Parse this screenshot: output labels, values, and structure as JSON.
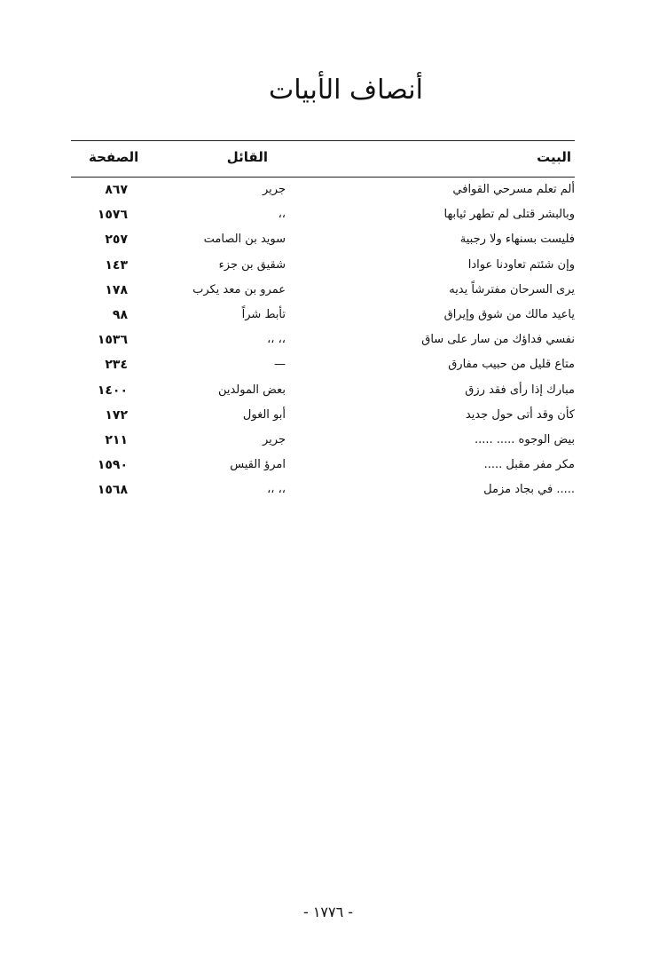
{
  "title": "أنصاف الأبيات",
  "table": {
    "headers": {
      "verse": "البيت",
      "speaker": "القائل",
      "page": "الصفحة"
    },
    "rows": [
      {
        "verse": "ألم تعلم مسرحي القوافي",
        "speaker": "جرير",
        "page": "٨٦٧"
      },
      {
        "verse": "وبالبشر قتلى لم تطهر ثيابها",
        "speaker": "،،",
        "page": "١٥٧٦"
      },
      {
        "verse": "فليست بسنهاء ولا رجبية",
        "speaker": "سويد بن الصامت",
        "page": "٢٥٧"
      },
      {
        "verse": "وإن شئتم تعاودنا عوادا",
        "speaker": "شقيق بن جزء",
        "page": "١٤٣"
      },
      {
        "verse": "يرى السرحان مفترشاً يديه",
        "speaker": "عمرو بن معد يكرب",
        "page": "١٧٨"
      },
      {
        "verse": "ياعيد مالك من شوق وإيراق",
        "speaker": "تأبط شراً",
        "page": "٩٨"
      },
      {
        "verse": "نفسي فداؤك من سار على ساق",
        "speaker": "،، ،،",
        "page": "١٥٣٦"
      },
      {
        "verse": "متاع قليل من حبيب مفارق",
        "speaker": "—",
        "page": "٢٣٤"
      },
      {
        "verse": "مبارك إذا رأى فقد رزق",
        "speaker": "بعض المولدين",
        "page": "١٤٠٠"
      },
      {
        "verse": "كأن وقد أتى حول جديد",
        "speaker": "أبو الغول",
        "page": "١٧٢"
      },
      {
        "verse": "بيض الوجوه ..... .....",
        "speaker": "جرير",
        "page": "٢١١"
      },
      {
        "verse": "مكر مفر مقبل .....",
        "speaker": "امرؤ القيس",
        "page": "١٥٩٠"
      },
      {
        "verse": "..... في بجاد مزمل",
        "speaker": "،، ،،",
        "page": "١٥٦٨"
      }
    ]
  },
  "footer": {
    "page_number": "- ١٧٧٦ -"
  }
}
